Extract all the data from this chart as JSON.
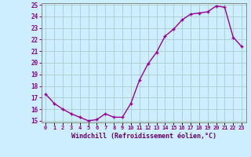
{
  "x": [
    0,
    1,
    2,
    3,
    4,
    5,
    6,
    7,
    8,
    9,
    10,
    11,
    12,
    13,
    14,
    15,
    16,
    17,
    18,
    19,
    20,
    21,
    22,
    23
  ],
  "y": [
    17.3,
    16.5,
    16.0,
    15.6,
    15.3,
    15.0,
    15.1,
    15.6,
    15.3,
    15.3,
    16.5,
    18.5,
    19.9,
    20.9,
    22.3,
    22.9,
    23.7,
    24.2,
    24.3,
    24.4,
    24.9,
    24.8,
    22.2,
    21.4
  ],
  "line_color": "#990099",
  "marker": "+",
  "bg_color": "#cceeff",
  "grid_color": "#aacccc",
  "xlabel": "Windchill (Refroidissement éolien,°C)",
  "xlabel_color": "#660066",
  "tick_color": "#880088",
  "ylim_min": 15,
  "ylim_max": 25,
  "xlim_min": 0,
  "xlim_max": 23,
  "yticks": [
    15,
    16,
    17,
    18,
    19,
    20,
    21,
    22,
    23,
    24,
    25
  ],
  "xtick_labels": [
    "0",
    "1",
    "2",
    "3",
    "4",
    "5",
    "6",
    "7",
    "8",
    "9",
    "10",
    "11",
    "12",
    "13",
    "14",
    "15",
    "16",
    "17",
    "18",
    "19",
    "20",
    "21",
    "22",
    "23"
  ],
  "spine_color": "#888888",
  "linewidth": 1.0,
  "markersize": 3.5,
  "markeredgewidth": 1.0
}
